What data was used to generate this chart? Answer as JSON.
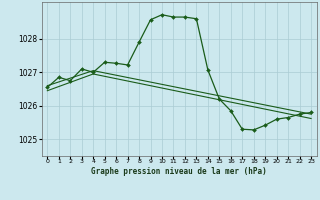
{
  "title": "Graphe pression niveau de la mer (hPa)",
  "bg_color": "#cce8ee",
  "grid_color": "#aaccd4",
  "line_color": "#1a5c1a",
  "marker_color": "#1a5c1a",
  "xlim": [
    -0.5,
    23.5
  ],
  "ylim": [
    1024.5,
    1029.1
  ],
  "yticks": [
    1025,
    1026,
    1027,
    1028
  ],
  "xtick_labels": [
    "0",
    "1",
    "2",
    "3",
    "4",
    "5",
    "6",
    "7",
    "8",
    "9",
    "10",
    "11",
    "12",
    "13",
    "14",
    "15",
    "16",
    "17",
    "18",
    "19",
    "20",
    "21",
    "22",
    "23"
  ],
  "series1_x": [
    0,
    1,
    2,
    3,
    4,
    5,
    6,
    7,
    8,
    9,
    10,
    11,
    12,
    13,
    14,
    15,
    16,
    17,
    18,
    19,
    20,
    21,
    22,
    23
  ],
  "series1_y": [
    1026.55,
    1026.85,
    1026.75,
    1027.1,
    1027.0,
    1027.3,
    1027.27,
    1027.22,
    1027.9,
    1028.57,
    1028.72,
    1028.65,
    1028.65,
    1028.6,
    1027.07,
    1026.2,
    1025.85,
    1025.3,
    1025.28,
    1025.42,
    1025.6,
    1025.65,
    1025.75,
    1025.8
  ],
  "series2_x": [
    0,
    4,
    23
  ],
  "series2_y": [
    1026.6,
    1027.05,
    1025.75
  ],
  "series3_x": [
    0,
    4,
    23
  ],
  "series3_y": [
    1026.45,
    1026.95,
    1025.62
  ]
}
